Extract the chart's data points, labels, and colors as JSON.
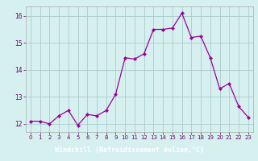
{
  "x": [
    0,
    1,
    2,
    3,
    4,
    5,
    6,
    7,
    8,
    9,
    10,
    11,
    12,
    13,
    14,
    15,
    16,
    17,
    18,
    19,
    20,
    21,
    22,
    23
  ],
  "y": [
    12.1,
    12.1,
    12.0,
    12.3,
    12.5,
    11.95,
    12.35,
    12.3,
    12.5,
    13.1,
    14.45,
    14.4,
    14.6,
    15.5,
    15.5,
    15.55,
    16.1,
    15.2,
    15.25,
    14.45,
    13.3,
    13.5,
    12.65,
    12.25
  ],
  "line_color": "#990099",
  "marker": "D",
  "marker_size": 2.2,
  "bg_color": "#d6f0f0",
  "grid_color": "#aacccc",
  "xlabel": "Windchill (Refroidissement éolien,°C)",
  "xlabel_fg": "#ffffff",
  "xlabel_bg": "#9955aa",
  "ylim": [
    11.7,
    16.35
  ],
  "xlim": [
    -0.5,
    23.5
  ],
  "yticks": [
    12,
    13,
    14,
    15,
    16
  ],
  "xticks": [
    0,
    1,
    2,
    3,
    4,
    5,
    6,
    7,
    8,
    9,
    10,
    11,
    12,
    13,
    14,
    15,
    16,
    17,
    18,
    19,
    20,
    21,
    22,
    23
  ],
  "tick_color": "#660066",
  "spine_color": "#aaaaaa",
  "tick_labelsize": 5.0,
  "ytick_labelsize": 5.5
}
